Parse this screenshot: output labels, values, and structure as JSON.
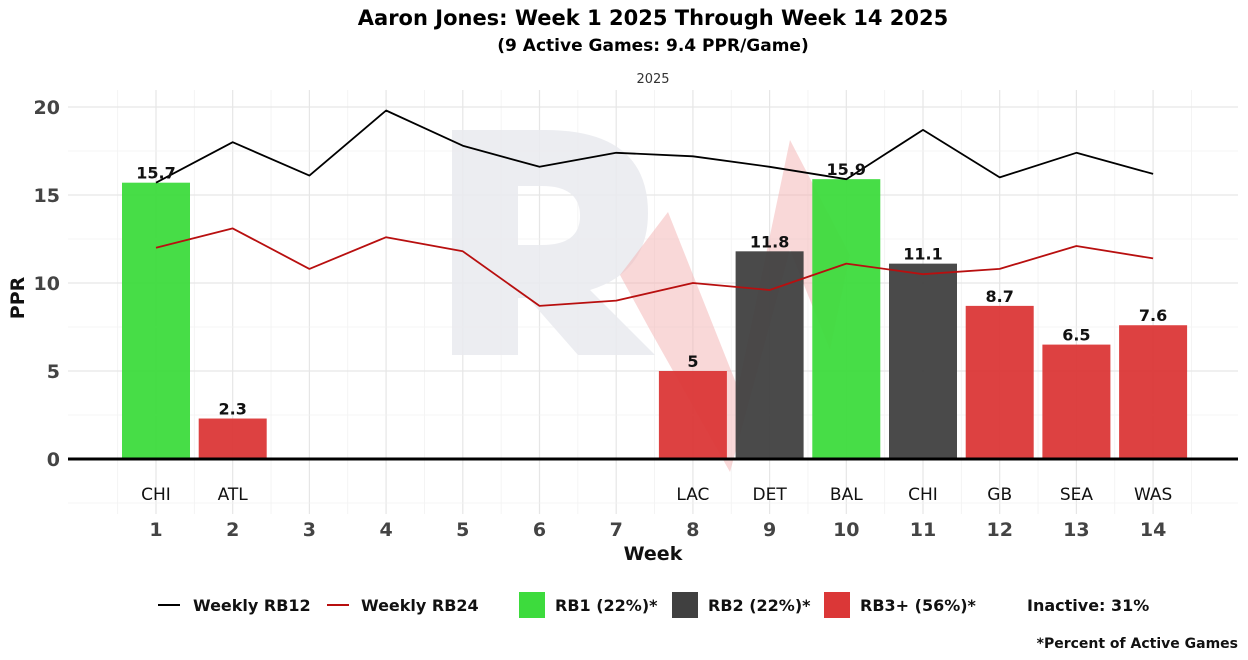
{
  "chart_data": {
    "type": "bar",
    "title": "Aaron Jones: Week 1 2025 Through Week 14 2025",
    "subtitle": "(9 Active Games: 9.4 PPR/Game)",
    "facet_label": "2025",
    "xlabel": "Week",
    "ylabel": "PPR",
    "ylim": [
      -2.5,
      21
    ],
    "yticks": [
      0,
      5,
      10,
      15,
      20
    ],
    "weeks": [
      1,
      2,
      3,
      4,
      5,
      6,
      7,
      8,
      9,
      10,
      11,
      12,
      13,
      14
    ],
    "bars": [
      {
        "week": 1,
        "opponent": "CHI",
        "value": 15.7,
        "label": "15.7",
        "tier": "RB1"
      },
      {
        "week": 2,
        "opponent": "ATL",
        "value": 2.3,
        "label": "2.3",
        "tier": "RB3+"
      },
      {
        "week": 8,
        "opponent": "LAC",
        "value": 5,
        "label": "5",
        "tier": "RB3+"
      },
      {
        "week": 9,
        "opponent": "DET",
        "value": 11.8,
        "label": "11.8",
        "tier": "RB2"
      },
      {
        "week": 10,
        "opponent": "BAL",
        "value": 15.9,
        "label": "15.9",
        "tier": "RB1"
      },
      {
        "week": 11,
        "opponent": "CHI",
        "value": 11.1,
        "label": "11.1",
        "tier": "RB2"
      },
      {
        "week": 12,
        "opponent": "GB",
        "value": 8.7,
        "label": "8.7",
        "tier": "RB3+"
      },
      {
        "week": 13,
        "opponent": "SEA",
        "value": 6.5,
        "label": "6.5",
        "tier": "RB3+"
      },
      {
        "week": 14,
        "opponent": "WAS",
        "value": 7.6,
        "label": "7.6",
        "tier": "RB3+"
      }
    ],
    "lines": [
      {
        "name": "Weekly RB12",
        "color": "#000000",
        "values": [
          15.7,
          18.0,
          16.1,
          19.8,
          17.8,
          16.6,
          17.4,
          17.2,
          16.6,
          15.9,
          18.7,
          16.0,
          17.4,
          16.2
        ]
      },
      {
        "name": "Weekly RB24",
        "color": "#b80f0f",
        "values": [
          12.0,
          13.1,
          10.8,
          12.6,
          11.8,
          8.7,
          9.0,
          10.0,
          9.6,
          11.1,
          10.5,
          10.8,
          12.1,
          11.4
        ]
      }
    ],
    "tier_colors": {
      "RB1": "#3ddb3d",
      "RB2": "#404040",
      "RB3+": "#db3737"
    },
    "legend": [
      {
        "kind": "line",
        "label": "Weekly RB12",
        "color": "#000000"
      },
      {
        "kind": "line",
        "label": "Weekly RB24",
        "color": "#b80f0f"
      },
      {
        "kind": "box",
        "label": "RB1 (22%)*",
        "color": "#3ddb3d"
      },
      {
        "kind": "box",
        "label": "RB2 (22%)*",
        "color": "#404040"
      },
      {
        "kind": "box",
        "label": "RB3+ (56%)*",
        "color": "#db3737"
      },
      {
        "kind": "text",
        "label": "Inactive: 31%"
      }
    ],
    "footnote": "*Percent of Active Games"
  }
}
